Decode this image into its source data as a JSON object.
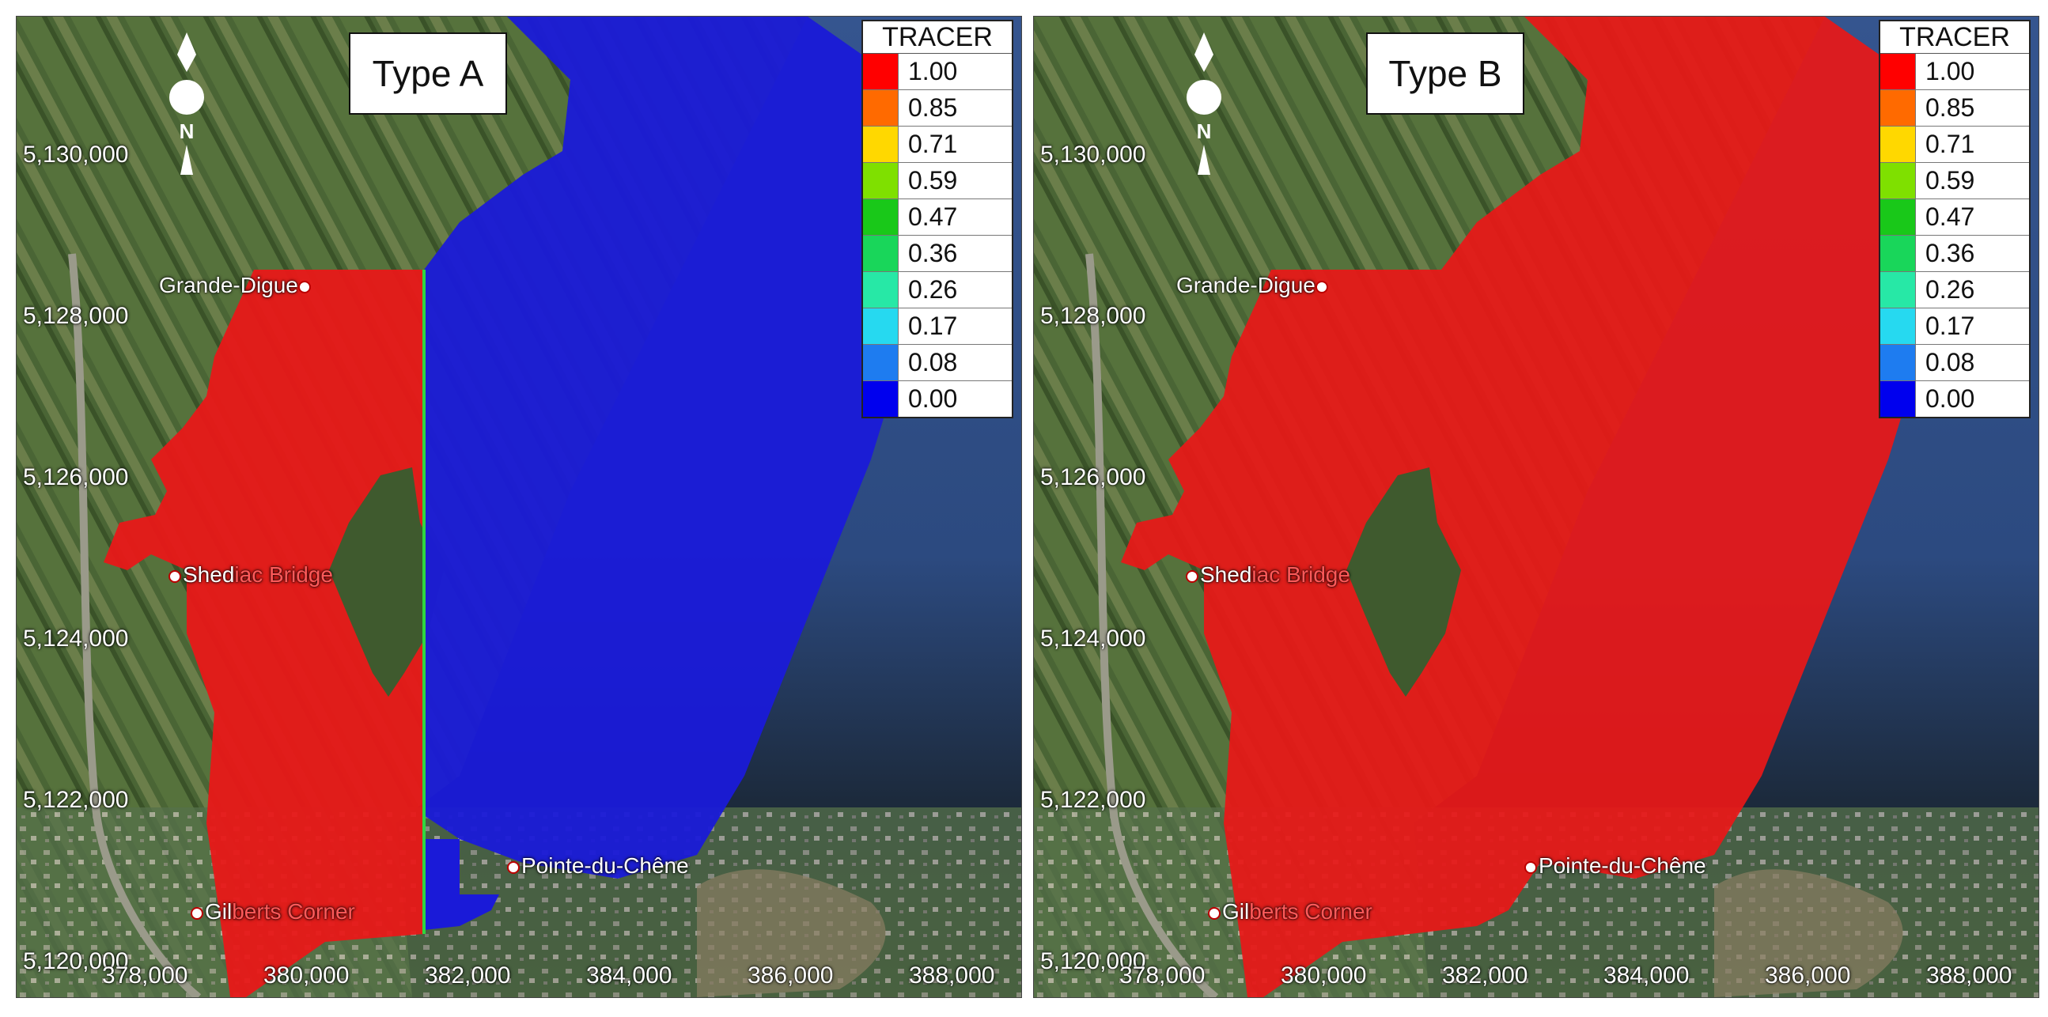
{
  "legend_title": "TRACER",
  "legend": [
    {
      "label": "1.00",
      "color": "#ff0000"
    },
    {
      "label": "0.85",
      "color": "#ff6a00"
    },
    {
      "label": "0.71",
      "color": "#ffd800"
    },
    {
      "label": "0.59",
      "color": "#7fe000"
    },
    {
      "label": "0.47",
      "color": "#19c819"
    },
    {
      "label": "0.36",
      "color": "#19d65a"
    },
    {
      "label": "0.26",
      "color": "#27e8a6"
    },
    {
      "label": "0.17",
      "color": "#26d9f0"
    },
    {
      "label": "0.08",
      "color": "#1e7cf0"
    },
    {
      "label": "0.00",
      "color": "#0000ee"
    }
  ],
  "north_label": "N",
  "y_ticks": [
    "5,130,000",
    "5,128,000",
    "5,126,000",
    "5,124,000",
    "5,122,000",
    "5,120,000"
  ],
  "x_ticks": [
    "378,000",
    "380,000",
    "382,000",
    "384,000",
    "386,000",
    "388,000"
  ],
  "places": [
    {
      "part1": "Grande-Digue",
      "part2": ""
    },
    {
      "part1": "Shed",
      "part2": "iac Bridge"
    },
    {
      "part1": "Pointe-du-Chêne",
      "part2": ""
    },
    {
      "part1": "Gil",
      "part2": "berts Corner"
    }
  ],
  "panels": [
    {
      "type_label": "Type A"
    },
    {
      "type_label": "Type B"
    }
  ],
  "colors": {
    "red_tracer": "#e81818",
    "blue_tracer": "#1a1ad8",
    "land": "#3f5a2e",
    "sea": "#2f4f8a"
  }
}
